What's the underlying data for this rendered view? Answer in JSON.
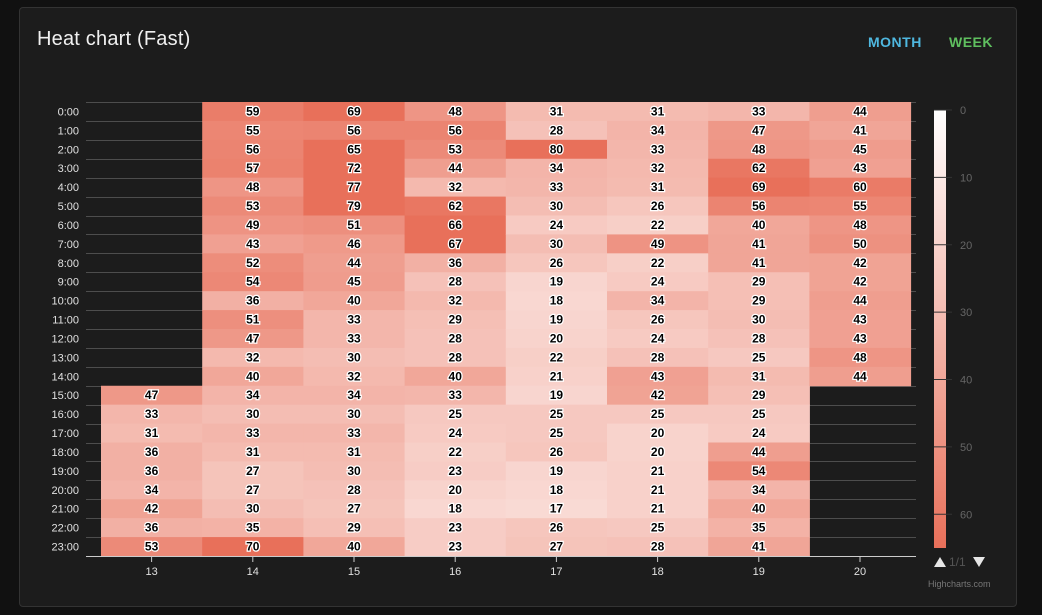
{
  "header": {
    "title": "Heat chart (Fast)",
    "month_label": "MONTH",
    "week_label": "WEEK",
    "month_color": "#4fb8e0",
    "week_color": "#5fbf5f"
  },
  "chart_data": {
    "type": "heatmap",
    "title": "Heat chart (Fast)",
    "x_categories": [
      "13",
      "14",
      "15",
      "16",
      "17",
      "18",
      "19",
      "20"
    ],
    "y_categories": [
      "0:00",
      "1:00",
      "2:00",
      "3:00",
      "4:00",
      "5:00",
      "6:00",
      "7:00",
      "8:00",
      "9:00",
      "10:00",
      "11:00",
      "12:00",
      "13:00",
      "14:00",
      "15:00",
      "16:00",
      "17:00",
      "18:00",
      "19:00",
      "20:00",
      "21:00",
      "22:00",
      "23:00"
    ],
    "columns": [
      [
        null,
        null,
        null,
        null,
        null,
        null,
        null,
        null,
        null,
        null,
        null,
        null,
        null,
        null,
        null,
        47,
        33,
        31,
        36,
        36,
        34,
        42,
        36,
        53
      ],
      [
        59,
        55,
        56,
        57,
        48,
        53,
        49,
        43,
        52,
        54,
        36,
        51,
        47,
        32,
        40,
        34,
        30,
        33,
        31,
        27,
        27,
        30,
        35,
        70
      ],
      [
        69,
        56,
        65,
        72,
        77,
        79,
        51,
        46,
        44,
        45,
        40,
        33,
        33,
        30,
        32,
        34,
        30,
        33,
        31,
        30,
        28,
        27,
        29,
        40
      ],
      [
        48,
        56,
        53,
        44,
        32,
        62,
        66,
        67,
        36,
        28,
        32,
        29,
        28,
        28,
        40,
        33,
        25,
        24,
        22,
        23,
        20,
        18,
        23,
        23
      ],
      [
        31,
        28,
        80,
        34,
        33,
        30,
        24,
        30,
        26,
        19,
        18,
        19,
        20,
        22,
        21,
        19,
        25,
        25,
        26,
        19,
        18,
        17,
        26,
        27
      ],
      [
        31,
        34,
        33,
        32,
        31,
        26,
        22,
        49,
        22,
        24,
        34,
        26,
        24,
        28,
        43,
        42,
        25,
        20,
        20,
        21,
        21,
        21,
        25,
        28
      ],
      [
        33,
        47,
        48,
        62,
        69,
        56,
        40,
        41,
        41,
        29,
        29,
        30,
        28,
        25,
        31,
        29,
        25,
        24,
        44,
        54,
        34,
        40,
        35,
        41
      ],
      [
        44,
        41,
        45,
        43,
        60,
        55,
        48,
        50,
        42,
        42,
        44,
        43,
        43,
        48,
        44,
        null,
        null,
        null,
        null,
        null,
        null,
        null,
        null,
        null
      ]
    ],
    "color_axis": {
      "min": 0,
      "max": 65,
      "min_color": "#ffffff",
      "max_color": "#e8705a",
      "ticks": [
        0,
        10,
        20,
        30,
        40,
        50,
        60
      ],
      "reversed": true
    },
    "legend": {
      "position": "right",
      "page_text": "1/1"
    },
    "credits": "Highcharts.com"
  }
}
